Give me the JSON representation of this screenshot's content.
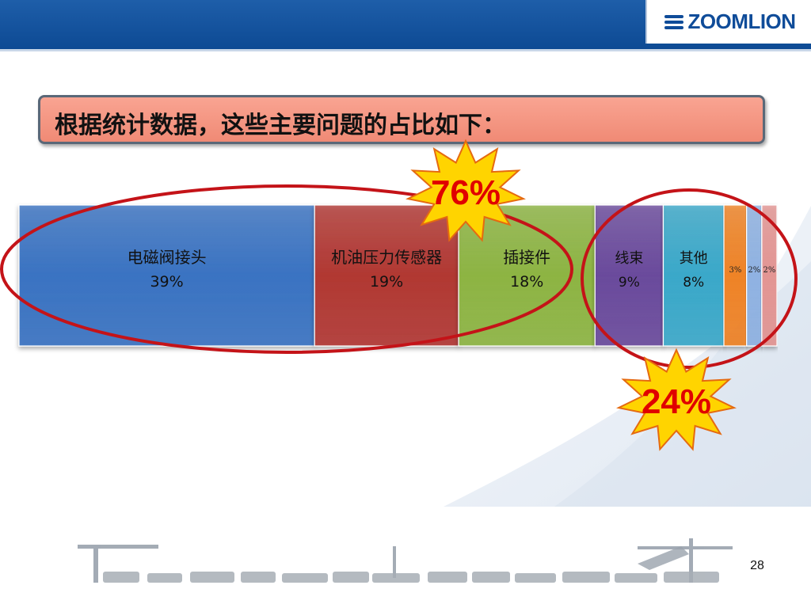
{
  "header": {
    "logo_text": "ZOOMLION",
    "colors": {
      "bar": "#0d4a94",
      "logo": "#0f4c99"
    }
  },
  "title": "根据统计数据，这些主要问题的占比如下：",
  "badges": [
    {
      "text": "76%",
      "color": "#ffd400",
      "text_color": "#e00000"
    },
    {
      "text": "24%",
      "color": "#ffd400",
      "text_color": "#e00000"
    }
  ],
  "chart_data": {
    "type": "bar",
    "orientation": "horizontal-stacked-100",
    "series": [
      {
        "label": "电磁阀接头",
        "value_label": "39%",
        "value": 39,
        "color": "#3a73c2"
      },
      {
        "label": "机油压力传感器",
        "value_label": "19%",
        "value": 19,
        "color": "#b13833"
      },
      {
        "label": "插接件",
        "value_label": "18%",
        "value": 18,
        "color": "#8db443"
      },
      {
        "label": "线束",
        "value_label": "9%",
        "value": 9,
        "color": "#6a4a9c"
      },
      {
        "label": "其他",
        "value_label": "8%",
        "value": 8,
        "color": "#3aa8c9"
      },
      {
        "label": "",
        "value_label": "3%",
        "value": 3,
        "color": "#ef8326"
      },
      {
        "label": "",
        "value_label": "2%",
        "value": 2,
        "color": "#8fb2e2"
      },
      {
        "label": "",
        "value_label": "2%",
        "value": 2,
        "color": "#e39593"
      }
    ],
    "groups": [
      {
        "covers": "first three segments",
        "total_label": "76%"
      },
      {
        "covers": "remaining segments",
        "total_label": "24%"
      }
    ],
    "highlight_color": "#c41318"
  },
  "footer": {
    "page_number": "28"
  }
}
